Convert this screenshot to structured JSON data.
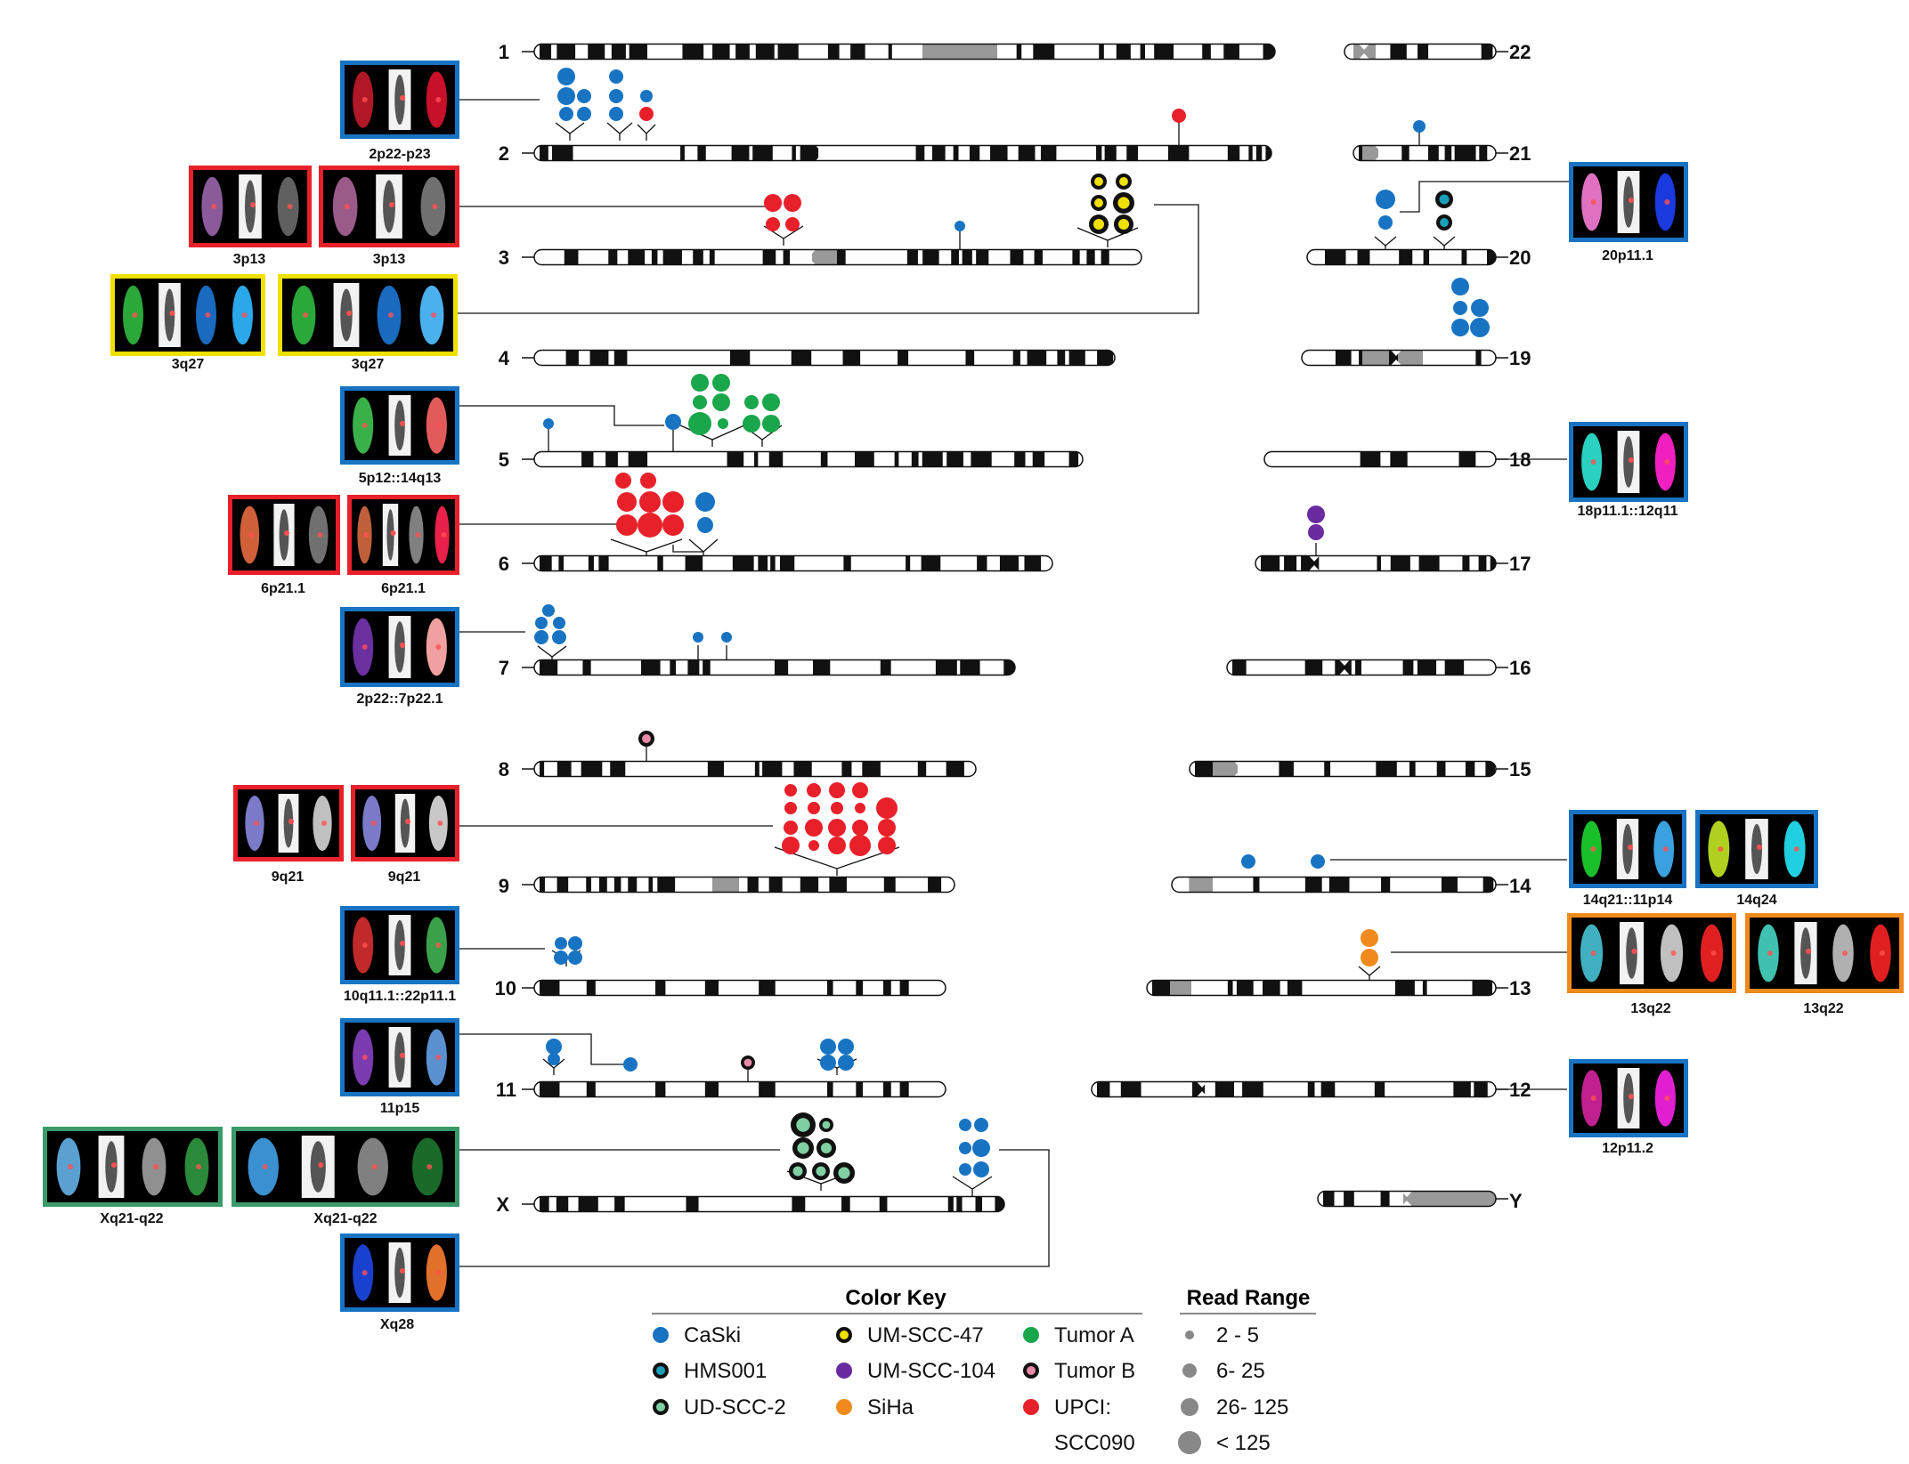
{
  "colors": {
    "CaSki": "#1874c3",
    "HMS001": "#1a9fb8",
    "UD-SCC-2": "#7fcfa3",
    "UM-SCC-47": "#f0e000",
    "UM-SCC-104": "#6a2aa0",
    "SiHa": "#f08a1c",
    "Tumor A": "#1aa64a",
    "Tumor B": "#e88aa8",
    "UPCI:SCC090": "#e8202a",
    "frame_green": "#3a9a6a"
  },
  "chromosomes_left": [
    "1",
    "2",
    "3",
    "4",
    "5",
    "6",
    "7",
    "8",
    "9",
    "10",
    "11",
    "X"
  ],
  "chromosomes_right": [
    "22",
    "21",
    "20",
    "19",
    "18",
    "17",
    "16",
    "15",
    "14",
    "13",
    "12",
    "Y"
  ],
  "panel_labels": {
    "p2": "2p22-p23",
    "p3a": "3p13",
    "p3b": "3p13",
    "p3c": "3q27",
    "p3d": "3q27",
    "p5": "5p12::14q13",
    "p6a": "6p21.1",
    "p6b": "6p21.1",
    "p7": "2p22::7p22.1",
    "p9a": "9q21",
    "p9b": "9q21",
    "p10": "10q11.1::22p11.1",
    "p11": "11p15",
    "pXa": "Xq21-q22",
    "pXb": "Xq21-q22",
    "pXq28": "Xq28",
    "p20": "20p11.1",
    "p18": "18p11.1::12q11",
    "p14a": "14q21::11p14",
    "p14b": "14q24",
    "p13a": "13q22",
    "p13b": "13q22",
    "p12": "12p11.2"
  },
  "legend": {
    "color_title": "Color Key",
    "read_title": "Read Range",
    "items": [
      {
        "label": "CaSki",
        "type": "CaSki"
      },
      {
        "label": "HMS001",
        "type": "HMS001"
      },
      {
        "label": "UD-SCC-2",
        "type": "UD-SCC-2"
      },
      {
        "label": "UM-SCC-47",
        "type": "UM-SCC-47"
      },
      {
        "label": "UM-SCC-104",
        "type": "UM-SCC-104"
      },
      {
        "label": "SiHa",
        "type": "SiHa"
      },
      {
        "label": "Tumor A",
        "type": "Tumor A"
      },
      {
        "label": "Tumor B",
        "type": "Tumor B"
      },
      {
        "label": "UPCI:",
        "label2": "SCC090",
        "type": "UPCI:SCC090"
      }
    ],
    "read_ranges": [
      "2 - 5",
      "6- 25",
      "26- 125",
      "< 125"
    ]
  }
}
